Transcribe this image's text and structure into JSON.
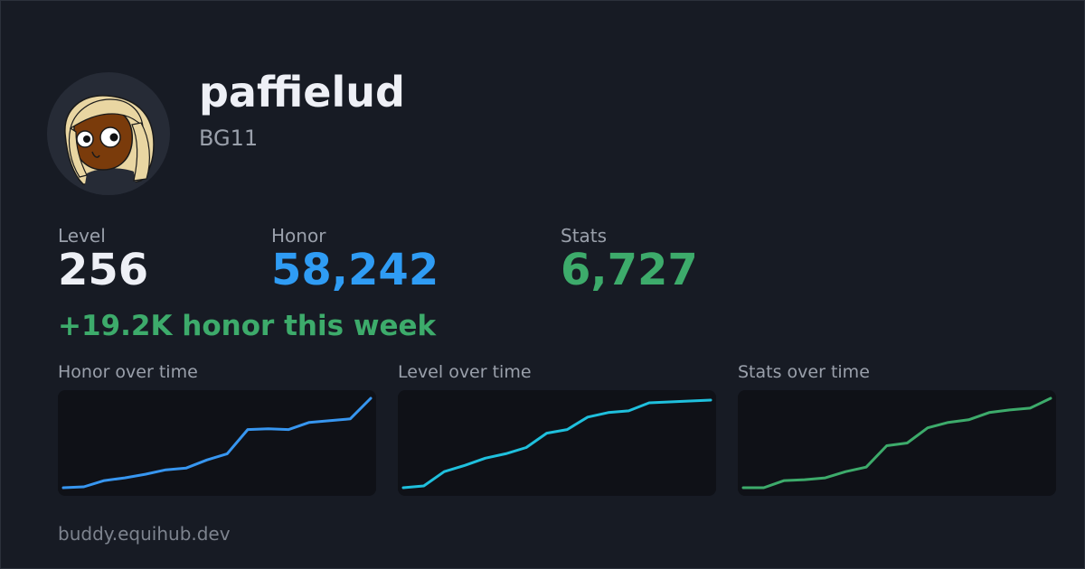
{
  "profile": {
    "username": "paffielud",
    "tag": "BG11"
  },
  "stats": [
    {
      "label": "Level",
      "value": "256",
      "color": "#eef0f6"
    },
    {
      "label": "Honor",
      "value": "58,242",
      "color": "#2f9cf4"
    },
    {
      "label": "Stats",
      "value": "6,727",
      "color": "#3dab6b"
    }
  ],
  "weekly": "+19.2K honor this week",
  "footer": "buddy.equihub.dev",
  "chart_data": [
    {
      "type": "line",
      "title": "Honor over time",
      "color": "#3796f0",
      "values": [
        0.0,
        0.01,
        0.08,
        0.11,
        0.15,
        0.2,
        0.22,
        0.31,
        0.38,
        0.65,
        0.66,
        0.65,
        0.73,
        0.75,
        0.77,
        1.0
      ]
    },
    {
      "type": "line",
      "title": "Level over time",
      "color": "#1fc0dd",
      "values": [
        0.0,
        0.02,
        0.18,
        0.25,
        0.33,
        0.38,
        0.45,
        0.61,
        0.65,
        0.79,
        0.84,
        0.86,
        0.95,
        0.96,
        0.97,
        0.98
      ]
    },
    {
      "type": "line",
      "title": "Stats over time",
      "color": "#3dab6b",
      "values": [
        0.0,
        0.0,
        0.08,
        0.09,
        0.11,
        0.18,
        0.23,
        0.47,
        0.5,
        0.67,
        0.73,
        0.76,
        0.84,
        0.87,
        0.89,
        1.0
      ]
    }
  ]
}
